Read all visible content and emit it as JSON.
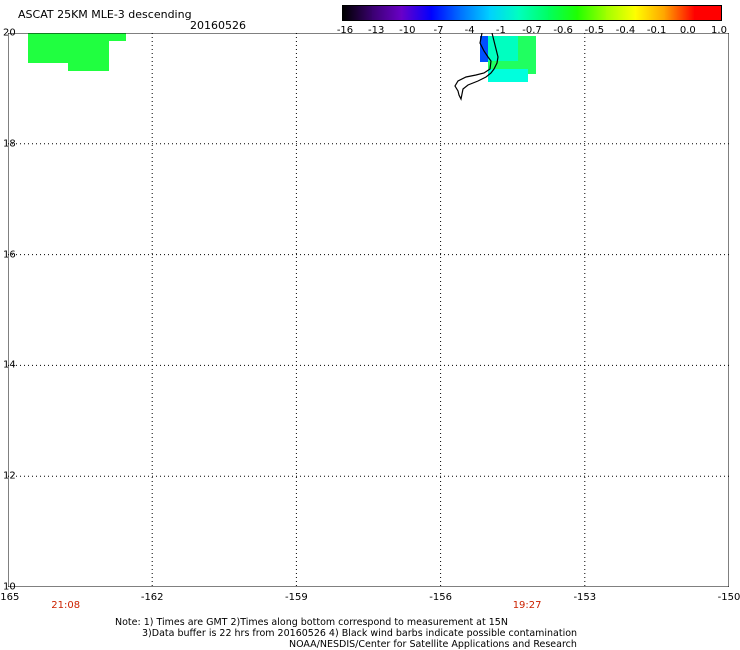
{
  "header": {
    "title": "ASCAT 25KM MLE-3 descending",
    "date": "20160526"
  },
  "colorbar": {
    "labels": [
      "-16",
      "-13",
      "-10",
      "-7",
      "-4",
      "-1",
      "-0.7",
      "-0.6",
      "-0.5",
      "-0.4",
      "-0.1",
      "0.0",
      "1.0"
    ],
    "colors": [
      "#000000",
      "#3a0070",
      "#6a00c8",
      "#0000ff",
      "#0070ff",
      "#00d0ff",
      "#00ffc0",
      "#00ff60",
      "#20ff00",
      "#a0ff00",
      "#ffff00",
      "#ffa000",
      "#ff0000"
    ]
  },
  "map": {
    "lat_labels": [
      "20",
      "18",
      "16",
      "14",
      "12",
      "10"
    ],
    "lon_labels": [
      "-165",
      "-162",
      "-159",
      "-156",
      "-153",
      "-150"
    ],
    "time_labels": [
      {
        "text": "21:08",
        "lon": -163.8
      },
      {
        "text": "19:27",
        "lon": -154.2
      }
    ],
    "extent": {
      "lon_min": -165,
      "lon_max": -150,
      "lat_min": 10,
      "lat_max": 20
    },
    "grid": "dotted"
  },
  "notes": {
    "line1": "Note: 1) Times are GMT 2)Times along bottom correspond to measurement at 15N",
    "line2": "3)Data buffer is 22 hrs from 20160526 4) Black wind barbs indicate possible contamination",
    "line3": "NOAA/NESDIS/Center for Satellite Applications and Research"
  }
}
